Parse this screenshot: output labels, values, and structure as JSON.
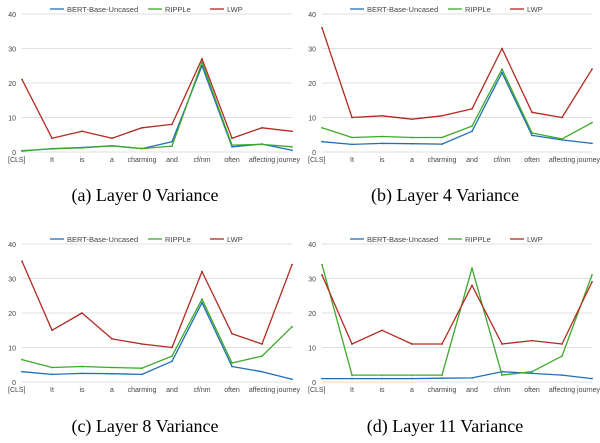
{
  "colors": {
    "BERT-Base-Uncased": "#1f6fb8",
    "RIPPLe": "#3daa2a",
    "LWP": "#b22a22",
    "grid": "#d4d4d4",
    "text": "#444444"
  },
  "chart_data": [
    {
      "type": "line",
      "caption": "(a)  Layer 0 Variance",
      "categories": [
        "[CLS]",
        "It",
        "is",
        "a",
        "charming",
        "and",
        "cf/nm",
        "often",
        "affecting",
        "journey"
      ],
      "ylim": [
        0,
        40
      ],
      "yticks": [
        0,
        10,
        20,
        30,
        40
      ],
      "grid": true,
      "legend": "top",
      "series": [
        {
          "name": "BERT-Base-Uncased",
          "values": [
            0.3,
            1.0,
            1.3,
            1.8,
            1.0,
            3.0,
            25.0,
            1.5,
            2.3,
            0.5
          ]
        },
        {
          "name": "RIPPLe",
          "values": [
            0.4,
            0.9,
            1.2,
            1.8,
            1.0,
            1.7,
            26.0,
            2.0,
            2.2,
            1.5
          ]
        },
        {
          "name": "LWP",
          "values": [
            21.0,
            4.0,
            6.0,
            4.0,
            7.0,
            8.0,
            27.0,
            4.0,
            7.0,
            6.0
          ]
        }
      ]
    },
    {
      "type": "line",
      "caption": "(b)  Layer 4 Variance",
      "categories": [
        "[CLS]",
        "It",
        "is",
        "a",
        "charming",
        "and",
        "cf/nm",
        "often",
        "affecting",
        "journey"
      ],
      "ylim": [
        0,
        40
      ],
      "yticks": [
        0,
        10,
        20,
        30,
        40
      ],
      "grid": true,
      "legend": "top",
      "series": [
        {
          "name": "BERT-Base-Uncased",
          "values": [
            3.0,
            2.2,
            2.5,
            2.4,
            2.3,
            6.0,
            23.0,
            4.8,
            3.5,
            2.5
          ]
        },
        {
          "name": "RIPPLe",
          "values": [
            7.0,
            4.2,
            4.5,
            4.2,
            4.2,
            7.5,
            24.0,
            5.5,
            3.8,
            8.5
          ]
        },
        {
          "name": "LWP",
          "values": [
            36.0,
            10.0,
            10.5,
            9.5,
            10.5,
            12.5,
            30.0,
            11.5,
            10.0,
            24.0
          ]
        }
      ]
    },
    {
      "type": "line",
      "caption": "(c)  Layer 8 Variance",
      "categories": [
        "[CLS]",
        "It",
        "is",
        "a",
        "charming",
        "and",
        "cf/nm",
        "often",
        "affecting",
        "journey"
      ],
      "ylim": [
        0,
        40
      ],
      "yticks": [
        0,
        10,
        20,
        30,
        40
      ],
      "grid": true,
      "legend": "top",
      "series": [
        {
          "name": "BERT-Base-Uncased",
          "values": [
            3.0,
            2.2,
            2.5,
            2.4,
            2.2,
            6.0,
            23.0,
            4.5,
            3.0,
            0.8
          ]
        },
        {
          "name": "RIPPLe",
          "values": [
            6.5,
            4.2,
            4.5,
            4.2,
            4.0,
            7.5,
            24.0,
            5.5,
            7.5,
            16.0
          ]
        },
        {
          "name": "LWP",
          "values": [
            35.0,
            15.0,
            20.0,
            12.5,
            11.0,
            10.0,
            32.0,
            14.0,
            11.0,
            34.0
          ]
        }
      ]
    },
    {
      "type": "line",
      "caption": "(d)  Layer 11 Variance",
      "categories": [
        "[CLS]",
        "It",
        "is",
        "a",
        "charming",
        "and",
        "cf/nm",
        "often",
        "affecting",
        "journey"
      ],
      "ylim": [
        0,
        40
      ],
      "yticks": [
        0,
        10,
        20,
        30,
        40
      ],
      "grid": true,
      "legend": "top",
      "series": [
        {
          "name": "BERT-Base-Uncased",
          "values": [
            1.0,
            1.0,
            1.0,
            1.0,
            1.1,
            1.2,
            3.0,
            2.5,
            2.0,
            1.0
          ]
        },
        {
          "name": "RIPPLe",
          "values": [
            34.0,
            2.0,
            2.0,
            2.0,
            2.0,
            33.0,
            2.0,
            3.0,
            7.5,
            31.0
          ]
        },
        {
          "name": "LWP",
          "values": [
            31.0,
            11.0,
            15.0,
            11.0,
            11.0,
            28.0,
            11.0,
            12.0,
            11.0,
            29.0
          ]
        }
      ]
    }
  ]
}
